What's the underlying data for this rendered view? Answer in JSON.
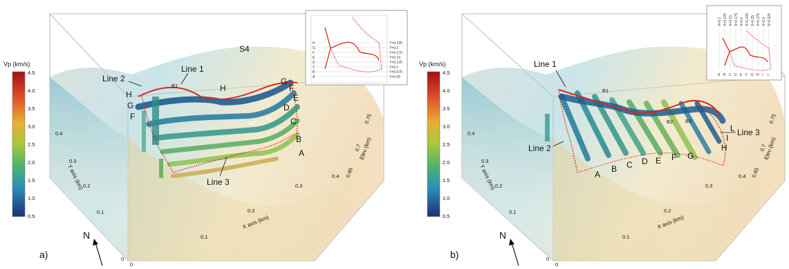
{
  "panels": [
    {
      "id": "a",
      "letter": "a)",
      "north": "N",
      "colorbar": {
        "title": "Vp (km/s)",
        "ticks": [
          "4.5",
          "4.0",
          "3.5",
          "3.0",
          "2.5",
          "2.0",
          "1.5",
          "1.0",
          "0.5"
        ]
      },
      "x_axis": {
        "title": "X axis (km)",
        "ticks": [
          "0",
          "0.1",
          "0.2",
          "0.3",
          "0.4"
        ]
      },
      "y_axis": {
        "title": "Y axis (km)",
        "ticks": [
          "0",
          "0.1",
          "0.2",
          "0.3",
          "0.4"
        ]
      },
      "elev_axis": {
        "title": "Elev (km)",
        "ticks": [
          "0.65",
          "0.7",
          "0.75"
        ]
      },
      "labels": {
        "line1": "Line 1",
        "line2": "Line 2",
        "line3": "Line 3",
        "b1": "B1",
        "b2": "B2",
        "b3": "B3",
        "s4": "S4",
        "left_letters": [
          "H",
          "G",
          "F"
        ],
        "right_letters": [
          "G",
          "F",
          "E",
          "D",
          "C",
          "B",
          "A"
        ],
        "mid_h": "H"
      },
      "inset": {
        "y_labels": [
          "Y=0.225",
          "Y=0.2",
          "Y=0.175",
          "Y=0.15",
          "Y=0.125",
          "Y=0.1",
          "Y=0.075",
          "Y=0.05"
        ],
        "letters": [
          "H",
          "G",
          "F",
          "E",
          "D",
          "C",
          "B",
          "A"
        ]
      }
    },
    {
      "id": "b",
      "letter": "b)",
      "north": "N",
      "colorbar": {
        "title": "Vp (km/s)",
        "ticks": [
          "4.5",
          "4.0",
          "3.5",
          "3.0",
          "2.5",
          "2.0",
          "1.5",
          "1.0",
          "0.5"
        ]
      },
      "x_axis": {
        "title": "X axis (km)",
        "ticks": [
          "0",
          "0.1",
          "0.2",
          "0.3",
          "0.4"
        ]
      },
      "y_axis": {
        "title": "Y axis (km)",
        "ticks": [
          "0",
          "0.1",
          "0.2",
          "0.3",
          "0.4"
        ]
      },
      "elev_axis": {
        "title": "Elev (km)",
        "ticks": [
          "0.65",
          "0.7",
          "0.75"
        ]
      },
      "labels": {
        "line1": "Line 1",
        "line2": "Line 2",
        "line3": "Line 3",
        "b1": "B1",
        "b2": "B2",
        "b3": "B3",
        "bottom_letters": [
          "A",
          "B",
          "C",
          "D",
          "E",
          "F",
          "G"
        ],
        "right_letters": [
          "H",
          "I",
          "L"
        ]
      },
      "inset": {
        "x_labels": [
          "X=0.1",
          "X=0.125",
          "X=0.15",
          "X=0.175",
          "X=0.2",
          "X=0.225",
          "X=0.25",
          "X=0.275",
          "X=0.3",
          "X=0.325"
        ],
        "letters": [
          "A",
          "B",
          "C",
          "D",
          "E",
          "F",
          "G",
          "H",
          "I",
          "L"
        ]
      }
    }
  ],
  "colors": {
    "profile_red": "#d9261c",
    "box_line": "#9a9a9a"
  }
}
